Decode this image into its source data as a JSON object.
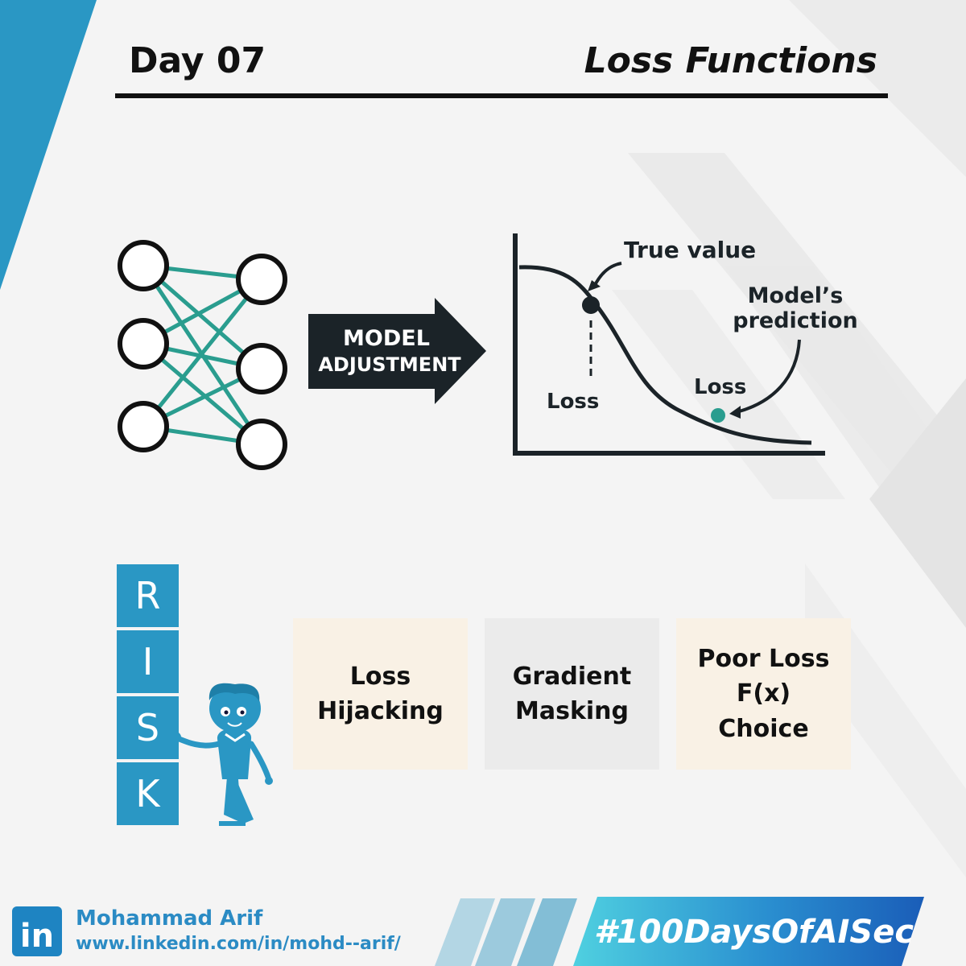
{
  "header": {
    "day": "Day 07",
    "title": "Loss Functions"
  },
  "diagram": {
    "arrow_label_line1": "MODEL",
    "arrow_label_line2": "ADJUSTMENT",
    "true_value_label": "True value",
    "model_prediction_line1": "Model’s",
    "model_prediction_line2": "prediction",
    "loss_label_left": "Loss",
    "loss_label_right": "Loss"
  },
  "risk": {
    "letters": [
      "R",
      "I",
      "S",
      "K"
    ]
  },
  "cards": [
    {
      "text": "Loss\nHijacking"
    },
    {
      "text": "Gradient\nMasking"
    },
    {
      "text": "Poor Loss\nF(x)\nChoice"
    }
  ],
  "footer": {
    "linkedin_icon_text": "in",
    "author_name": "Mohammad Arif",
    "author_url": "www.linkedin.com/in/mohd--arif/",
    "hashtag": "#100DaysOfAISec"
  },
  "colors": {
    "accent_blue": "#2a97c4",
    "teal": "#2a9d8f",
    "dark": "#111111",
    "card_cream": "#f9f1e5",
    "card_gray": "#ebebeb"
  }
}
